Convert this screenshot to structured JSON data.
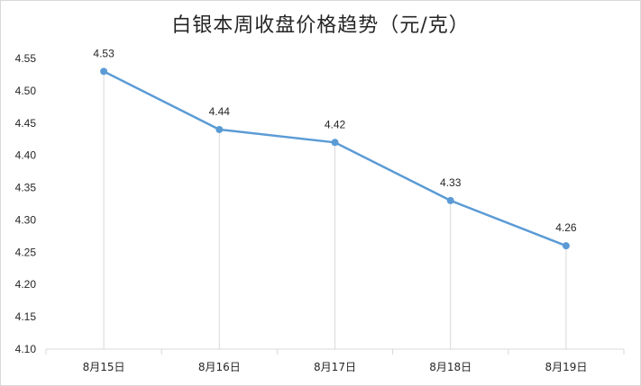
{
  "chart_data": {
    "type": "line",
    "title": "白银本周收盘价格趋势（元/克）",
    "categories": [
      "8月15日",
      "8月16日",
      "8月17日",
      "8月18日",
      "8月19日"
    ],
    "series": [
      {
        "values": [
          4.53,
          4.44,
          4.42,
          4.33,
          4.26
        ],
        "color": "#5b9bd5"
      }
    ],
    "data_labels": [
      "4.53",
      "4.44",
      "4.42",
      "4.33",
      "4.26"
    ],
    "ylim": [
      4.1,
      4.55
    ],
    "yticks": [
      "4.10",
      "4.15",
      "4.20",
      "4.25",
      "4.30",
      "4.35",
      "4.40",
      "4.45",
      "4.50",
      "4.55"
    ],
    "grid": false,
    "drop_lines": true,
    "legend": "none"
  }
}
